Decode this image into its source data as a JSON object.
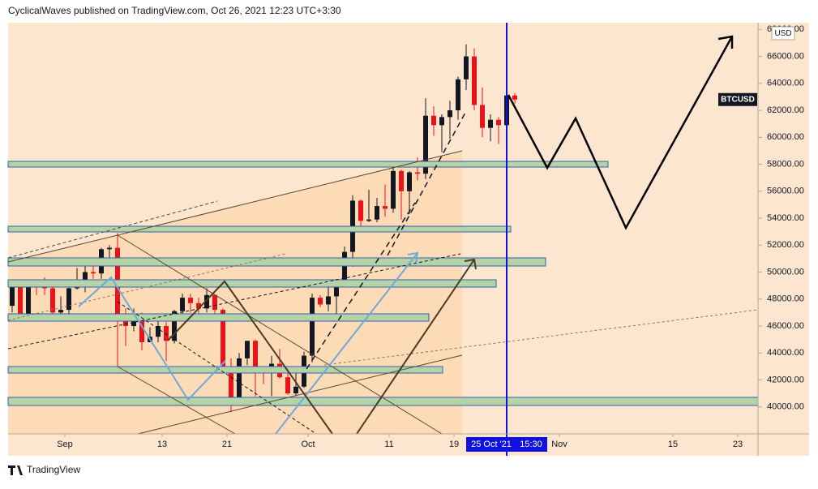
{
  "header": "CyclicalWaves published on TradingView.com, Oct 26, 2021 12:23 UTC+3:30",
  "footer": "TradingView",
  "chart_data": {
    "type": "candlestick",
    "symbol": "BTCUSD",
    "currency": "USD",
    "up_color": "#131722",
    "down_color": "#e8121b",
    "x": [
      "2021-08-25",
      "2021-08-26",
      "2021-08-27",
      "2021-08-28",
      "2021-08-29",
      "2021-08-30",
      "2021-08-31",
      "2021-09-01",
      "2021-09-02",
      "2021-09-03",
      "2021-09-04",
      "2021-09-05",
      "2021-09-06",
      "2021-09-07",
      "2021-09-08",
      "2021-09-09",
      "2021-09-10",
      "2021-09-11",
      "2021-09-12",
      "2021-09-13",
      "2021-09-14",
      "2021-09-15",
      "2021-09-16",
      "2021-09-17",
      "2021-09-18",
      "2021-09-19",
      "2021-09-20",
      "2021-09-21",
      "2021-09-22",
      "2021-09-23",
      "2021-09-24",
      "2021-09-25",
      "2021-09-26",
      "2021-09-27",
      "2021-09-28",
      "2021-09-29",
      "2021-09-30",
      "2021-10-01",
      "2021-10-02",
      "2021-10-03",
      "2021-10-04",
      "2021-10-05",
      "2021-10-06",
      "2021-10-07",
      "2021-10-08",
      "2021-10-09",
      "2021-10-10",
      "2021-10-11",
      "2021-10-12",
      "2021-10-13",
      "2021-10-14",
      "2021-10-15",
      "2021-10-16",
      "2021-10-17",
      "2021-10-18",
      "2021-10-19",
      "2021-10-20",
      "2021-10-21",
      "2021-10-22",
      "2021-10-23",
      "2021-10-24",
      "2021-10-25",
      "2021-10-26"
    ],
    "ohlc": [
      [
        47500,
        49000,
        47000,
        49000
      ],
      [
        49000,
        49300,
        46500,
        46900
      ],
      [
        46900,
        49200,
        46500,
        49000
      ],
      [
        49000,
        49300,
        48300,
        48900
      ],
      [
        48900,
        49600,
        48300,
        48800
      ],
      [
        48800,
        48900,
        46900,
        47000
      ],
      [
        47000,
        48200,
        46800,
        47200
      ],
      [
        47200,
        49000,
        46600,
        48800
      ],
      [
        48800,
        50300,
        48700,
        49300
      ],
      [
        49300,
        51000,
        48500,
        50000
      ],
      [
        50000,
        50500,
        49500,
        49900
      ],
      [
        49900,
        51800,
        49500,
        51700
      ],
      [
        51700,
        52000,
        50900,
        51800
      ],
      [
        51800,
        52900,
        43000,
        46800
      ],
      [
        46800,
        47300,
        44500,
        46000
      ],
      [
        46000,
        47300,
        45600,
        46400
      ],
      [
        46400,
        47000,
        44200,
        44800
      ],
      [
        44800,
        45900,
        44800,
        45200
      ],
      [
        45200,
        46400,
        44800,
        46000
      ],
      [
        46000,
        46300,
        43400,
        44900
      ],
      [
        44900,
        47200,
        44700,
        47100
      ],
      [
        47100,
        48400,
        46700,
        48100
      ],
      [
        48100,
        48400,
        47000,
        47700
      ],
      [
        47700,
        48100,
        46800,
        47300
      ],
      [
        47300,
        48800,
        47000,
        48300
      ],
      [
        48300,
        48300,
        46900,
        47200
      ],
      [
        47200,
        47300,
        42500,
        43000
      ],
      [
        43000,
        43600,
        39600,
        40700
      ],
      [
        40700,
        44000,
        40500,
        43600
      ],
      [
        43600,
        44900,
        43100,
        44900
      ],
      [
        44900,
        45000,
        40800,
        42800
      ],
      [
        42800,
        42900,
        41700,
        42700
      ],
      [
        42700,
        43800,
        40800,
        43200
      ],
      [
        43200,
        44300,
        42100,
        42200
      ],
      [
        42200,
        42800,
        40900,
        41000
      ],
      [
        41000,
        42600,
        40800,
        41500
      ],
      [
        41500,
        44100,
        41400,
        43800
      ],
      [
        43800,
        48400,
        43300,
        48100
      ],
      [
        48100,
        48300,
        47400,
        47600
      ],
      [
        47600,
        49200,
        47100,
        48200
      ],
      [
        48200,
        49500,
        46900,
        49200
      ],
      [
        49200,
        51900,
        49000,
        51500
      ],
      [
        51500,
        55700,
        50400,
        55300
      ],
      [
        55300,
        55400,
        53400,
        53800
      ],
      [
        53800,
        56100,
        53700,
        53900
      ],
      [
        53900,
        55500,
        53700,
        54900
      ],
      [
        54900,
        56500,
        54100,
        54700
      ],
      [
        54700,
        57800,
        54400,
        57500
      ],
      [
        57500,
        57600,
        53900,
        56000
      ],
      [
        56000,
        57500,
        54300,
        57400
      ],
      [
        57400,
        58500,
        56800,
        57300
      ],
      [
        57300,
        62900,
        56900,
        61600
      ],
      [
        61600,
        62300,
        60100,
        60900
      ],
      [
        60900,
        61700,
        58900,
        61500
      ],
      [
        61500,
        62700,
        59900,
        62000
      ],
      [
        62000,
        64500,
        61300,
        64300
      ],
      [
        64300,
        66900,
        63500,
        66000
      ],
      [
        66000,
        66600,
        62000,
        62400
      ],
      [
        62400,
        63700,
        60000,
        60700
      ],
      [
        60700,
        61700,
        59700,
        61300
      ],
      [
        61300,
        61500,
        59500,
        60900
      ],
      [
        60900,
        63700,
        60700,
        63100
      ],
      [
        63100,
        63300,
        62500,
        62800
      ]
    ],
    "xlim": [
      "2021-08-25",
      "2021-11-25"
    ],
    "xticks": [
      {
        "value": "2021-09-01",
        "label": "Sep"
      },
      {
        "value": "2021-09-13",
        "label": "13"
      },
      {
        "value": "2021-09-21",
        "label": "21"
      },
      {
        "value": "2021-10-01",
        "label": "Oct"
      },
      {
        "value": "2021-10-11",
        "label": "11"
      },
      {
        "value": "2021-10-19",
        "label": "19"
      },
      {
        "value": "2021-11-01",
        "label": "Nov"
      },
      {
        "value": "2021-11-15",
        "label": "15"
      },
      {
        "value": "2021-11-23",
        "label": "23"
      }
    ],
    "ylim": [
      38000,
      68500
    ],
    "yticks": [
      {
        "value": 40000,
        "label": "40000.00"
      },
      {
        "value": 42000,
        "label": "42000.00"
      },
      {
        "value": 44000,
        "label": "44000.00"
      },
      {
        "value": 46000,
        "label": "46000.00"
      },
      {
        "value": 48000,
        "label": "48000.00"
      },
      {
        "value": 50000,
        "label": "50000.00"
      },
      {
        "value": 52000,
        "label": "52000.00"
      },
      {
        "value": 54000,
        "label": "54000.00"
      },
      {
        "value": 56000,
        "label": "56000.00"
      },
      {
        "value": 58000,
        "label": "58000.00"
      },
      {
        "value": 60000,
        "label": "60000.00"
      },
      {
        "value": 62000,
        "label": "62000.00"
      },
      {
        "value": 64000,
        "label": "64000.00"
      },
      {
        "value": 66000,
        "label": "66000.00"
      },
      {
        "value": 68000,
        "label": "68000.00"
      }
    ],
    "crosshair": {
      "date": "25 Oct '21",
      "time": "15:30"
    }
  }
}
